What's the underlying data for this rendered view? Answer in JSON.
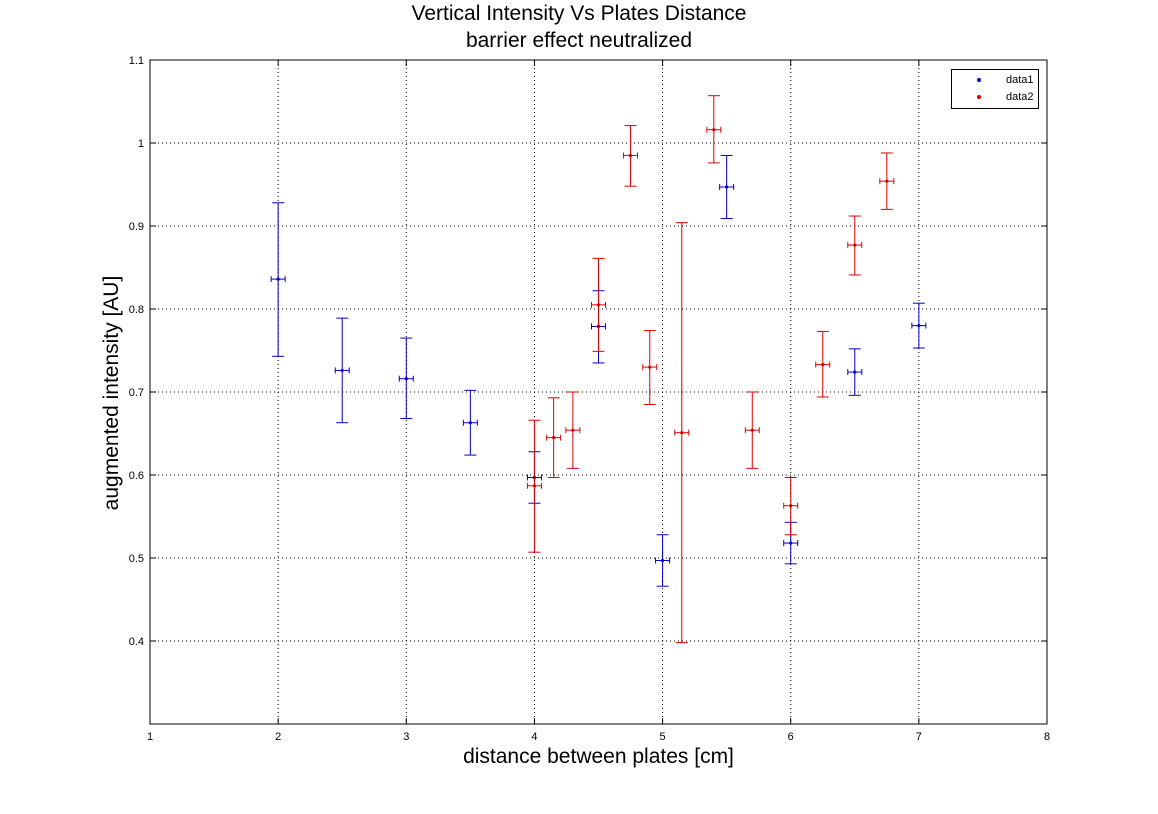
{
  "chart_data": {
    "type": "scatter",
    "title": "Vertical Intensity Vs Plates Distance",
    "subtitle": "barrier effect neutralized",
    "xlabel": "distance between plates [cm]",
    "ylabel": "augmented intensity [AU]",
    "xlim": [
      1,
      8
    ],
    "ylim": [
      0.3,
      1.1
    ],
    "xticks": [
      "1",
      "2",
      "3",
      "4",
      "5",
      "6",
      "7",
      "8"
    ],
    "yticks": [
      "0.4",
      "0.5",
      "0.6",
      "0.7",
      "0.8",
      "0.9",
      "1",
      "1.1"
    ],
    "grid": true,
    "legend_position": "top-right",
    "series": [
      {
        "name": "data1",
        "color": "#0000cc",
        "points": [
          {
            "x": 2.0,
            "y": 0.836,
            "ylow": 0.743,
            "yhigh": 0.928
          },
          {
            "x": 2.5,
            "y": 0.726,
            "ylow": 0.663,
            "yhigh": 0.789
          },
          {
            "x": 3.0,
            "y": 0.716,
            "ylow": 0.668,
            "yhigh": 0.765
          },
          {
            "x": 3.5,
            "y": 0.663,
            "ylow": 0.624,
            "yhigh": 0.702
          },
          {
            "x": 4.0,
            "y": 0.597,
            "ylow": 0.566,
            "yhigh": 0.628
          },
          {
            "x": 4.5,
            "y": 0.779,
            "ylow": 0.735,
            "yhigh": 0.822
          },
          {
            "x": 5.0,
            "y": 0.497,
            "ylow": 0.466,
            "yhigh": 0.528
          },
          {
            "x": 5.5,
            "y": 0.947,
            "ylow": 0.909,
            "yhigh": 0.985
          },
          {
            "x": 6.0,
            "y": 0.518,
            "ylow": 0.493,
            "yhigh": 0.543
          },
          {
            "x": 6.5,
            "y": 0.724,
            "ylow": 0.696,
            "yhigh": 0.752
          },
          {
            "x": 7.0,
            "y": 0.78,
            "ylow": 0.753,
            "yhigh": 0.807
          }
        ]
      },
      {
        "name": "data2",
        "color": "#dd0000",
        "points": [
          {
            "x": 4.0,
            "y": 0.587,
            "ylow": 0.507,
            "yhigh": 0.666
          },
          {
            "x": 4.15,
            "y": 0.645,
            "ylow": 0.597,
            "yhigh": 0.693
          },
          {
            "x": 4.3,
            "y": 0.654,
            "ylow": 0.608,
            "yhigh": 0.7
          },
          {
            "x": 4.5,
            "y": 0.805,
            "ylow": 0.749,
            "yhigh": 0.861
          },
          {
            "x": 4.75,
            "y": 0.985,
            "ylow": 0.948,
            "yhigh": 1.021
          },
          {
            "x": 4.9,
            "y": 0.73,
            "ylow": 0.685,
            "yhigh": 0.774
          },
          {
            "x": 5.15,
            "y": 0.651,
            "ylow": 0.398,
            "yhigh": 0.904
          },
          {
            "x": 5.4,
            "y": 1.016,
            "ylow": 0.976,
            "yhigh": 1.057
          },
          {
            "x": 5.7,
            "y": 0.654,
            "ylow": 0.608,
            "yhigh": 0.7
          },
          {
            "x": 6.0,
            "y": 0.563,
            "ylow": 0.528,
            "yhigh": 0.597
          },
          {
            "x": 6.25,
            "y": 0.733,
            "ylow": 0.694,
            "yhigh": 0.773
          },
          {
            "x": 6.5,
            "y": 0.877,
            "ylow": 0.841,
            "yhigh": 0.912
          },
          {
            "x": 6.75,
            "y": 0.954,
            "ylow": 0.92,
            "yhigh": 0.988
          }
        ]
      }
    ]
  }
}
